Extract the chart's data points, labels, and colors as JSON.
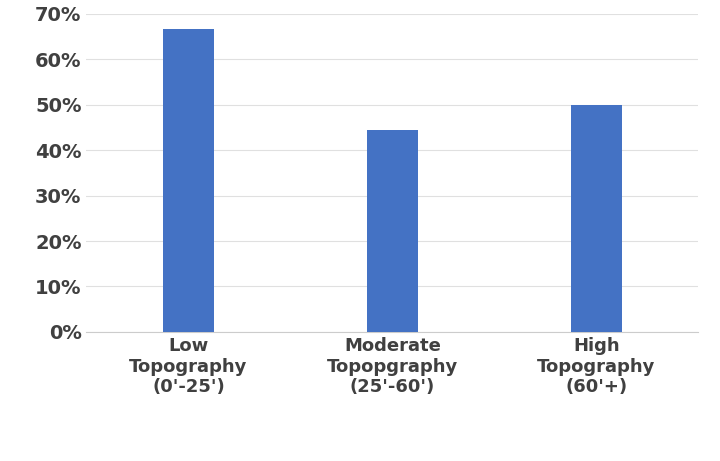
{
  "categories": [
    "Low\nTopography\n(0'-25')",
    "Moderate\nTopopgraphy\n(25'-60')",
    "High\nTopography\n(60'+)"
  ],
  "values": [
    0.667,
    0.444,
    0.5
  ],
  "bar_color": "#4472C4",
  "ylim": [
    0,
    0.7
  ],
  "yticks": [
    0.0,
    0.1,
    0.2,
    0.3,
    0.4,
    0.5,
    0.6,
    0.7
  ],
  "background_color": "#ffffff",
  "grid_color": "#e0e0e0",
  "bar_width": 0.25,
  "tick_fontsize": 14,
  "label_fontsize": 13,
  "tick_fontweight": "bold",
  "label_fontweight": "bold"
}
